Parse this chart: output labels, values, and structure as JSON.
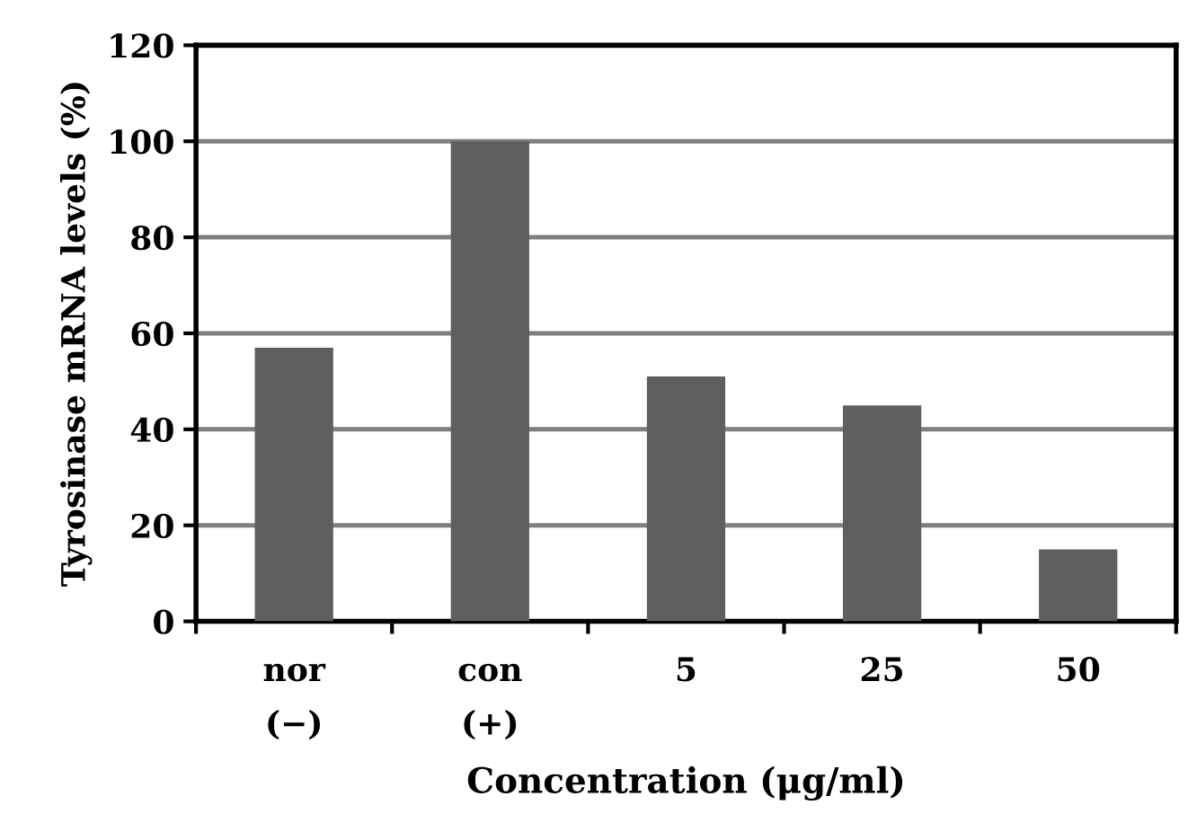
{
  "chart_data": {
    "type": "bar",
    "xlabel": "Concentration (μg/ml)",
    "ylabel": "Tyrosinase mRNA levels (%)",
    "categories": [
      "nor\n(−)",
      "con\n(+)",
      "5",
      "25",
      "50"
    ],
    "values": [
      57,
      100,
      51,
      45,
      15
    ],
    "color": "#5f5f5f",
    "ylim": [
      0,
      120
    ],
    "yticks": [
      0,
      20,
      40,
      60,
      80,
      100,
      120
    ],
    "grid": "y"
  }
}
